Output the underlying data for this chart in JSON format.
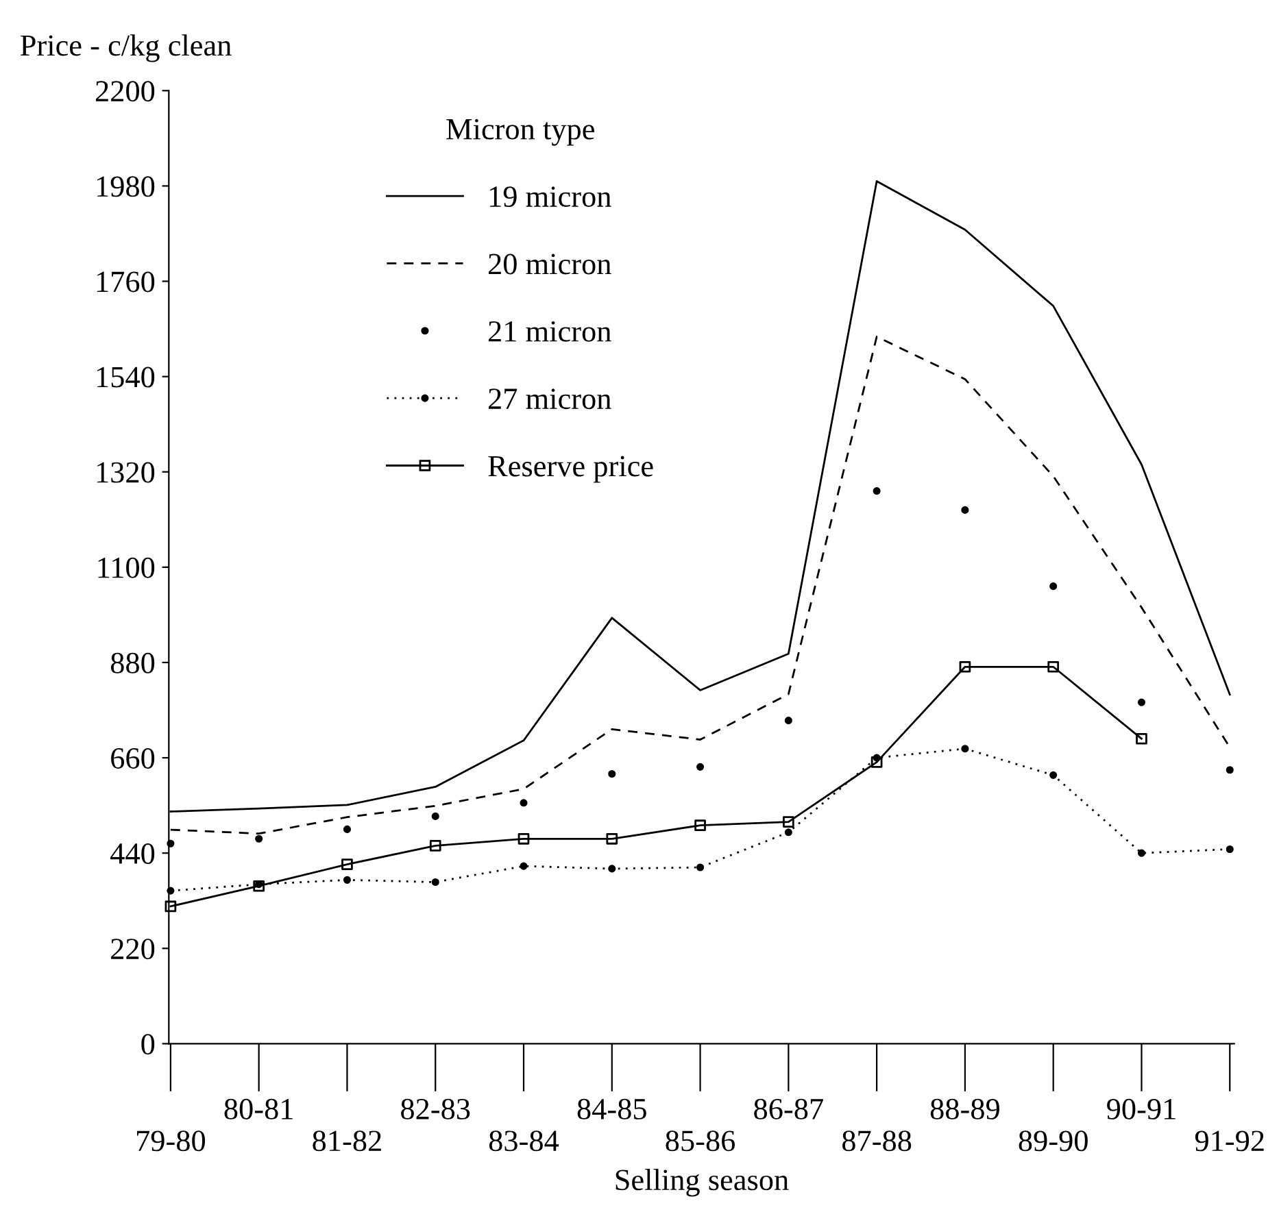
{
  "chart_data": {
    "type": "line",
    "xlabel": "Selling season",
    "ylabel": "Price - c/kg clean",
    "legend_title": "Micron type",
    "legend": "top",
    "grid": false,
    "categories": [
      "79-80",
      "80-81",
      "81-82",
      "82-83",
      "83-84",
      "84-85",
      "85-86",
      "86-87",
      "87-88",
      "88-89",
      "89-90",
      "90-91",
      "91-92"
    ],
    "ylim": [
      0,
      2200
    ],
    "yticks": [
      0,
      220,
      440,
      660,
      880,
      1100,
      1320,
      1540,
      1760,
      1980,
      2200
    ],
    "series": [
      {
        "name": "19 micron",
        "color": "#000000",
        "line_style": "solid",
        "marker": "none",
        "values": [
          536,
          543,
          551,
          593,
          700,
          983,
          816,
          900,
          1991,
          1879,
          1703,
          1337,
          806
        ]
      },
      {
        "name": "20 micron",
        "color": "#000000",
        "line_style": "dashed",
        "marker": "none",
        "values": [
          494,
          485,
          523,
          549,
          588,
          726,
          702,
          807,
          1632,
          1534,
          1310,
          1007,
          684
        ]
      },
      {
        "name": "21 micron",
        "type": "scatter",
        "color": "#000000",
        "marker": "circle",
        "values": [
          462,
          473,
          495,
          525,
          556,
          623,
          639,
          746,
          1276,
          1232,
          1056,
          788,
          632
        ]
      },
      {
        "name": "27 micron",
        "color": "#000000",
        "line_style": "dotted",
        "marker": "circle",
        "values": [
          353,
          368,
          378,
          373,
          410,
          404,
          407,
          488,
          660,
          681,
          620,
          440,
          449
        ]
      },
      {
        "name": "Reserve price",
        "color": "#000000",
        "line_style": "solid",
        "marker": "square",
        "values": [
          317,
          364,
          414,
          457,
          473,
          473,
          504,
          512,
          650,
          870,
          870,
          704,
          null
        ]
      }
    ]
  }
}
